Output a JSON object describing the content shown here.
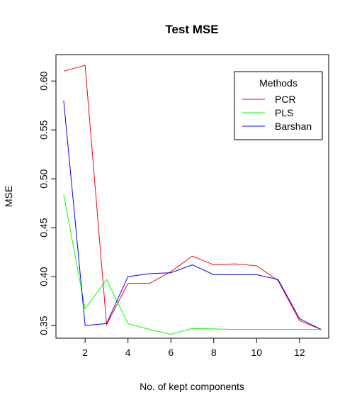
{
  "chart_data": {
    "type": "line",
    "title": "Test MSE",
    "xlabel": "No. of kept components",
    "ylabel": "MSE",
    "x": [
      1,
      2,
      3,
      4,
      5,
      6,
      7,
      8,
      9,
      10,
      11,
      12,
      13
    ],
    "xlim": [
      0.64,
      13.36
    ],
    "ylim": [
      0.337,
      0.627
    ],
    "xticks": [
      2,
      4,
      6,
      8,
      10,
      12
    ],
    "yticks": [
      0.35,
      0.4,
      0.45,
      0.5,
      0.55,
      0.6
    ],
    "xtick_labels": [
      "2",
      "4",
      "6",
      "8",
      "10",
      "12"
    ],
    "ytick_labels": [
      "0.35",
      "0.40",
      "0.45",
      "0.50",
      "0.55",
      "0.60"
    ],
    "grid": false,
    "legend": {
      "title": "Methods",
      "position": "top-right"
    },
    "series": [
      {
        "name": "PCR",
        "color": "#ff0000",
        "values": [
          0.61,
          0.616,
          0.351,
          0.393,
          0.393,
          0.405,
          0.421,
          0.412,
          0.413,
          0.411,
          0.396,
          0.355,
          0.346
        ]
      },
      {
        "name": "PLS",
        "color": "#00ff00",
        "values": [
          0.484,
          0.367,
          0.397,
          0.352,
          0.346,
          0.341,
          0.347,
          0.3465,
          0.346,
          0.346,
          0.346,
          0.346,
          0.346
        ]
      },
      {
        "name": "Barshan",
        "color": "#0000ff",
        "values": [
          0.58,
          0.35,
          0.352,
          0.4,
          0.403,
          0.404,
          0.412,
          0.402,
          0.402,
          0.402,
          0.397,
          0.357,
          0.346
        ]
      }
    ]
  }
}
